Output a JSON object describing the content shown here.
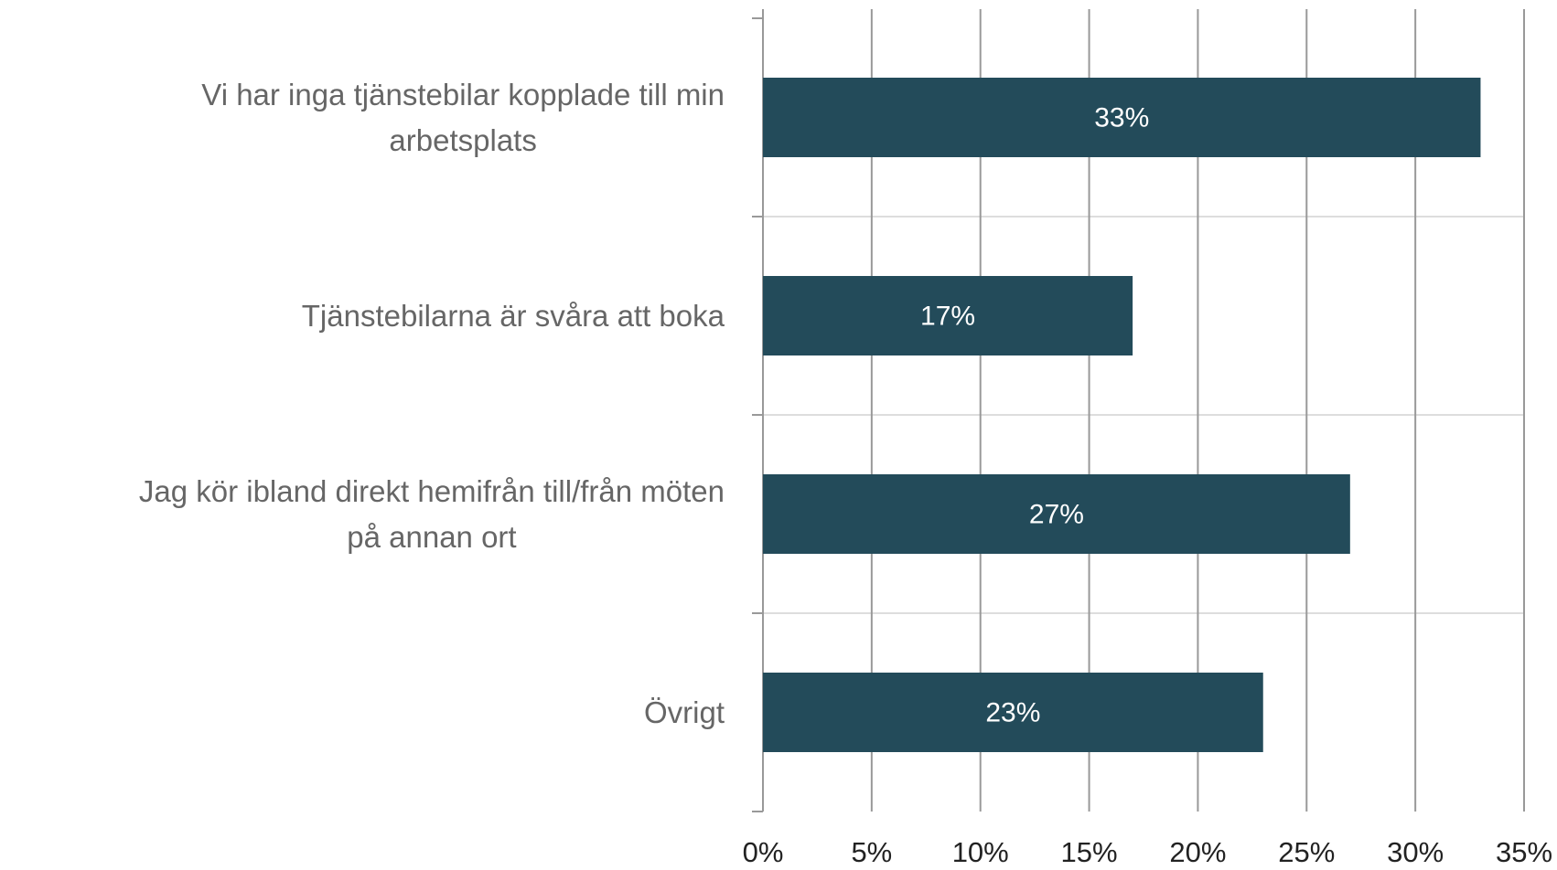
{
  "chart_data": {
    "type": "bar",
    "orientation": "horizontal",
    "categories": [
      "Vi har inga tjänstebilar kopplade till min\narbetsplats",
      "Tjänstebilarna är svåra att boka",
      "Jag kör ibland direkt hemifrån till/från möten\npå annan ort",
      "Övrigt"
    ],
    "values": [
      33,
      17,
      27,
      23
    ],
    "value_labels": [
      "33%",
      "17%",
      "27%",
      "23%"
    ],
    "color": "#234b5a",
    "xlim": [
      0,
      35
    ],
    "xticks": [
      {
        "value": 0,
        "label": "0%"
      },
      {
        "value": 5,
        "label": "5%"
      },
      {
        "value": 10,
        "label": "10%"
      },
      {
        "value": 15,
        "label": "15%"
      },
      {
        "value": 20,
        "label": "20%"
      },
      {
        "value": 25,
        "label": "25%"
      },
      {
        "value": 30,
        "label": "30%"
      },
      {
        "value": 35,
        "label": "35%"
      }
    ],
    "grid": true
  }
}
